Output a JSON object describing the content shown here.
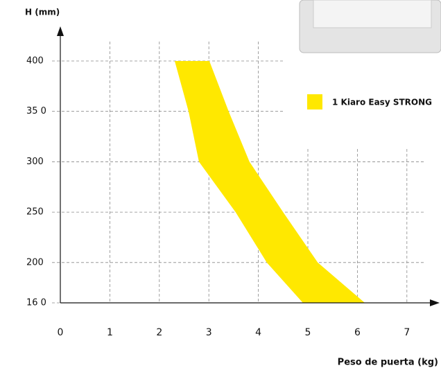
{
  "chart_data": {
    "type": "range-area",
    "y_title": "H (mm)",
    "x_title": "Peso de puerta (kg)",
    "y": [
      400,
      350,
      300,
      250,
      200,
      160
    ],
    "series": [
      {
        "name": "1 Kiaro Easy STRONG",
        "color": "#ffe800",
        "x_low": [
          2.31,
          2.59,
          2.8,
          3.54,
          4.17,
          4.9
        ],
        "x_high": [
          3.01,
          3.4,
          3.82,
          4.5,
          5.2,
          6.15
        ]
      }
    ],
    "xlim": [
      0,
      7.6
    ],
    "xticks": [
      0,
      1,
      2,
      3,
      4,
      5,
      6,
      7
    ],
    "ylim": [
      160,
      400
    ],
    "yticks": [
      400,
      {
        "value": 350,
        "label": "35 0"
      },
      300,
      250,
      200,
      {
        "value": 160,
        "label": "16 0"
      }
    ],
    "grid": true
  }
}
